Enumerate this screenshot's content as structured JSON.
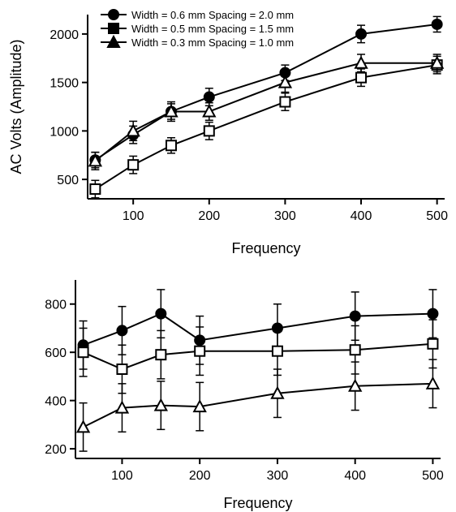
{
  "chart_data": [
    {
      "type": "line",
      "title": "",
      "xlabel": "Frequency",
      "ylabel": "AC Volts (Amplitude)",
      "x": [
        50,
        100,
        150,
        200,
        300,
        400,
        500
      ],
      "xticks": [
        100,
        200,
        300,
        400,
        500
      ],
      "yticks": [
        500,
        1000,
        1500,
        2000
      ],
      "xlim": [
        40,
        510
      ],
      "ylim": [
        300,
        2200
      ],
      "grid": false,
      "legend_position": "top-left",
      "series": [
        {
          "name": "Width = 0.6 mm  Spacing = 2.0 mm",
          "marker": "circle",
          "values": [
            700,
            960,
            1200,
            1350,
            1600,
            2000,
            2100
          ],
          "errors": [
            80,
            90,
            80,
            90,
            80,
            90,
            80
          ]
        },
        {
          "name": "Width = 0.5 mm  Spacing = 1.5 mm",
          "marker": "square",
          "values": [
            400,
            650,
            850,
            1000,
            1300,
            1550,
            1680
          ],
          "errors": [
            90,
            90,
            80,
            90,
            90,
            90,
            90
          ]
        },
        {
          "name": "Width = 0.3 mm  Spacing = 1.0 mm",
          "marker": "triangle",
          "values": [
            690,
            1000,
            1200,
            1200,
            1500,
            1700,
            1700
          ],
          "errors": [
            90,
            100,
            100,
            90,
            100,
            90,
            90
          ]
        }
      ]
    },
    {
      "type": "line",
      "title": "",
      "xlabel": "Frequency",
      "ylabel": "",
      "x": [
        50,
        100,
        150,
        200,
        300,
        400,
        500
      ],
      "xticks": [
        100,
        200,
        300,
        400,
        500
      ],
      "yticks": [
        200,
        400,
        600,
        800
      ],
      "xlim": [
        40,
        510
      ],
      "ylim": [
        160,
        900
      ],
      "grid": false,
      "series": [
        {
          "name": "",
          "marker": "circle",
          "values": [
            630,
            690,
            760,
            650,
            700,
            750,
            760
          ],
          "errors": [
            100,
            100,
            100,
            100,
            100,
            100,
            100
          ]
        },
        {
          "name": "",
          "marker": "square",
          "values": [
            600,
            530,
            590,
            605,
            605,
            610,
            635
          ],
          "errors": [
            100,
            100,
            100,
            100,
            100,
            100,
            100
          ]
        },
        {
          "name": "",
          "marker": "triangle",
          "values": [
            290,
            370,
            380,
            375,
            430,
            460,
            470
          ],
          "errors": [
            100,
            100,
            100,
            100,
            100,
            100,
            100
          ]
        }
      ]
    }
  ]
}
